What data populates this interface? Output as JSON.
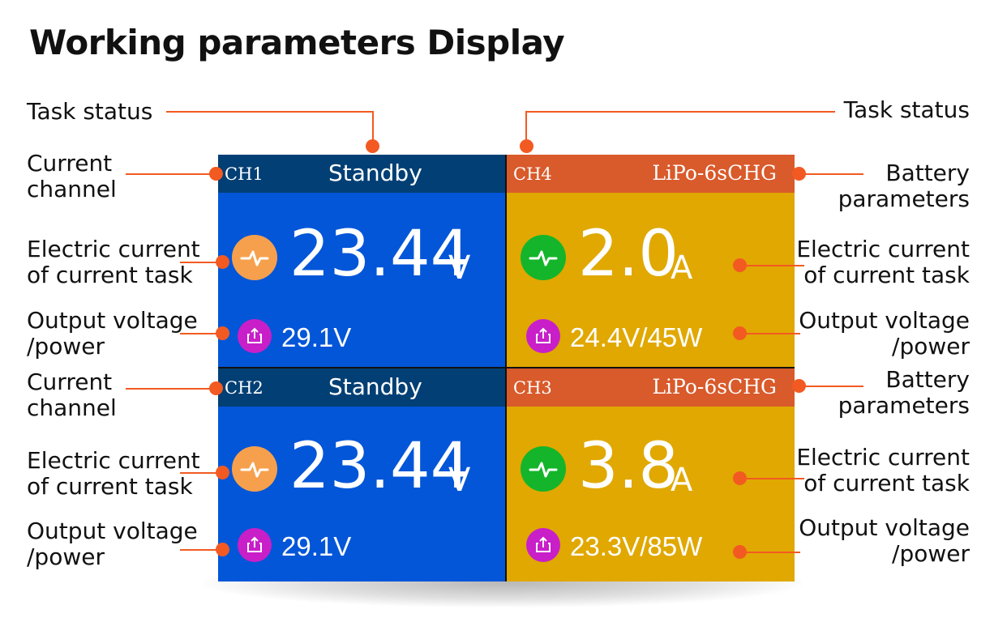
{
  "title": "Working parameters Display",
  "colors": {
    "accent": "#f25a22",
    "blue_panel": "#0356d8",
    "blue_header": "#013f74",
    "yellow_panel": "#e0a800",
    "orange_header": "#d95a2b",
    "current_icon_orange": "#f6a04d",
    "current_icon_green": "#14b52a",
    "output_icon": "#c81fc9"
  },
  "channels": [
    {
      "channel": "CH1",
      "status": "Standby",
      "main_value": "23.44",
      "unit": "V",
      "output": "29.1V",
      "current_icon": "waveform-icon",
      "output_icon": "export-icon"
    },
    {
      "channel": "CH4",
      "status": "LiPo-6sCHG",
      "main_value": "2.0",
      "unit": "A",
      "output": "24.4V/45W",
      "current_icon": "waveform-icon",
      "output_icon": "export-icon"
    },
    {
      "channel": "CH2",
      "status": "Standby",
      "main_value": "23.44",
      "unit": "V",
      "output": "29.1V",
      "current_icon": "waveform-icon",
      "output_icon": "export-icon"
    },
    {
      "channel": "CH3",
      "status": "LiPo-6sCHG",
      "main_value": "3.8",
      "unit": "A",
      "output": "23.3V/85W",
      "current_icon": "waveform-icon",
      "output_icon": "export-icon"
    }
  ],
  "labels": {
    "task_status_left": "Task status",
    "task_status_right": "Task status",
    "current_channel_1": [
      "Current",
      "channel"
    ],
    "current_channel_2": [
      "Current",
      "channel"
    ],
    "electric_current_l1": [
      "Electric current",
      "of current task"
    ],
    "electric_current_l2": [
      "Electric current",
      "of current task"
    ],
    "output_voltage_l1": [
      "Output voltage",
      "/power"
    ],
    "output_voltage_l2": [
      "Output voltage",
      "/power"
    ],
    "battery_params_1": [
      "Battery",
      "parameters"
    ],
    "battery_params_2": [
      "Battery",
      "parameters"
    ],
    "electric_current_r1": [
      "Electric current",
      "of current task"
    ],
    "electric_current_r2": [
      "Electric current",
      "of current task"
    ],
    "output_voltage_r1": [
      "Output voltage",
      "/power"
    ],
    "output_voltage_r2": [
      "Output voltage",
      "/power"
    ]
  }
}
